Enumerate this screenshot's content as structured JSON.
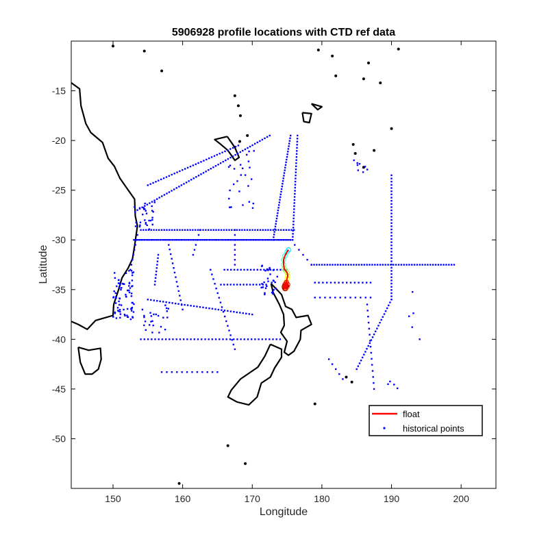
{
  "chart_data": {
    "type": "scatter",
    "title": "5906928 profile locations with CTD ref data",
    "xlabel": "Longitude",
    "ylabel": "Latitude",
    "xlim": [
      144,
      205
    ],
    "ylim": [
      -55,
      -10
    ],
    "x_ticks": [
      150,
      160,
      170,
      180,
      190,
      200
    ],
    "y_ticks": [
      -15,
      -20,
      -25,
      -30,
      -35,
      -40,
      -45,
      -50
    ],
    "grid": false,
    "legend_location": "bottom-right",
    "colors": {
      "float": "#ff0000",
      "historical": "#0000ff",
      "coast": "#000000"
    },
    "series": [
      {
        "name": "float",
        "kind": "line",
        "x": [
          175.2,
          175.0,
          174.7,
          174.5,
          174.5,
          174.6,
          174.8,
          175.0,
          175.1,
          175.0,
          174.9,
          174.8,
          174.7,
          174.6,
          174.8,
          175.0,
          175.1,
          174.9,
          174.7,
          174.6,
          174.7,
          174.9
        ],
        "y": [
          -31.0,
          -31.2,
          -31.6,
          -32.0,
          -32.5,
          -32.9,
          -33.1,
          -33.3,
          -33.6,
          -33.9,
          -34.2,
          -34.4,
          -34.6,
          -34.8,
          -34.9,
          -34.7,
          -34.5,
          -34.3,
          -34.5,
          -34.7,
          -34.9,
          -34.6
        ]
      },
      {
        "name": "historical points",
        "kind": "scatter",
        "groups": [
          {
            "type": "line",
            "from": [
              153.0,
              -30.0
            ],
            "to": [
              175.5,
              -30.0
            ],
            "n": 90
          },
          {
            "type": "line",
            "from": [
              175.5,
              -30.0
            ],
            "to": [
              178.5,
              -32.5
            ],
            "n": 6
          },
          {
            "type": "line",
            "from": [
              178.5,
              -32.5
            ],
            "to": [
              199.0,
              -32.5
            ],
            "n": 55
          },
          {
            "type": "line",
            "from": [
              190.0,
              -23.5
            ],
            "to": [
              190.0,
              -36.0
            ],
            "n": 40
          },
          {
            "type": "line",
            "from": [
              190.0,
              -36.0
            ],
            "to": [
              185.0,
              -43.0
            ],
            "n": 25
          },
          {
            "type": "line",
            "from": [
              175.5,
              -19.5
            ],
            "to": [
              173.0,
              -30.0
            ],
            "n": 40
          },
          {
            "type": "line",
            "from": [
              176.5,
              -19.5
            ],
            "to": [
              175.8,
              -30.0
            ],
            "n": 35
          },
          {
            "type": "line",
            "from": [
              153.5,
              -27.0
            ],
            "to": [
              172.5,
              -19.5
            ],
            "n": 55
          },
          {
            "type": "line",
            "from": [
              155.0,
              -24.5
            ],
            "to": [
              168.0,
              -20.5
            ],
            "n": 35
          },
          {
            "type": "line",
            "from": [
              154.0,
              -29.0
            ],
            "to": [
              176.0,
              -29.0
            ],
            "n": 60
          },
          {
            "type": "line",
            "from": [
              162.5,
              -29.0
            ],
            "to": [
              161.5,
              -31.5
            ],
            "n": 6
          },
          {
            "type": "line",
            "from": [
              167.5,
              -29.0
            ],
            "to": [
              167.5,
              -32.5
            ],
            "n": 8
          },
          {
            "type": "line",
            "from": [
              158.0,
              -30.5
            ],
            "to": [
              160.0,
              -37.0
            ],
            "n": 15
          },
          {
            "type": "line",
            "from": [
              164.0,
              -33.0
            ],
            "to": [
              167.5,
              -41.0
            ],
            "n": 18
          },
          {
            "type": "line",
            "from": [
              155.0,
              -36.0
            ],
            "to": [
              170.0,
              -37.5
            ],
            "n": 35
          },
          {
            "type": "line",
            "from": [
              154.0,
              -40.0
            ],
            "to": [
              174.0,
              -40.0
            ],
            "n": 40
          },
          {
            "type": "line",
            "from": [
              157.0,
              -43.3
            ],
            "to": [
              165.0,
              -43.3
            ],
            "n": 12
          },
          {
            "type": "line",
            "from": [
              179.0,
              -34.3
            ],
            "to": [
              187.0,
              -34.3
            ],
            "n": 15
          },
          {
            "type": "line",
            "from": [
              179.0,
              -35.8
            ],
            "to": [
              187.0,
              -35.8
            ],
            "n": 12
          },
          {
            "type": "line",
            "from": [
              186.5,
              -36.5
            ],
            "to": [
              187.5,
              -45.0
            ],
            "n": 15
          },
          {
            "type": "line",
            "from": [
              181.0,
              -42.0
            ],
            "to": [
              183.0,
              -44.0
            ],
            "n": 5
          },
          {
            "type": "line",
            "from": [
              153.5,
              -29.5
            ],
            "to": [
              152.5,
              -33.0
            ],
            "n": 8
          },
          {
            "type": "line",
            "from": [
              156.5,
              -31.5
            ],
            "to": [
              156.0,
              -34.5
            ],
            "n": 10
          },
          {
            "type": "line",
            "from": [
              166.0,
              -33.0
            ],
            "to": [
              175.0,
              -33.0
            ],
            "n": 20
          },
          {
            "type": "line",
            "from": [
              165.5,
              -34.5
            ],
            "to": [
              172.0,
              -34.5
            ],
            "n": 15
          },
          {
            "type": "cloud",
            "center": [
              151.5,
              -35.5
            ],
            "spread": [
              1.5,
              2.5
            ],
            "n": 80
          },
          {
            "type": "cloud",
            "center": [
              154.5,
              -27.5
            ],
            "spread": [
              1.5,
              1.5
            ],
            "n": 30
          },
          {
            "type": "cloud",
            "center": [
              172.5,
              -34.0
            ],
            "spread": [
              1.2,
              1.5
            ],
            "n": 30
          },
          {
            "type": "cloud",
            "center": [
              168.5,
              -24.0
            ],
            "spread": [
              2.0,
              3.0
            ],
            "n": 25
          },
          {
            "type": "cloud",
            "center": [
              156.0,
              -38.0
            ],
            "spread": [
              2.0,
              1.5
            ],
            "n": 25
          },
          {
            "type": "cloud",
            "center": [
              186.0,
              -22.5
            ],
            "spread": [
              1.5,
              1.0
            ],
            "n": 8
          },
          {
            "type": "cloud",
            "center": [
              193.5,
              -38.0
            ],
            "spread": [
              1.0,
              3.0
            ],
            "n": 5
          },
          {
            "type": "cloud",
            "center": [
              190.0,
              -44.0
            ],
            "spread": [
              1.0,
              1.0
            ],
            "n": 4
          }
        ]
      }
    ]
  }
}
